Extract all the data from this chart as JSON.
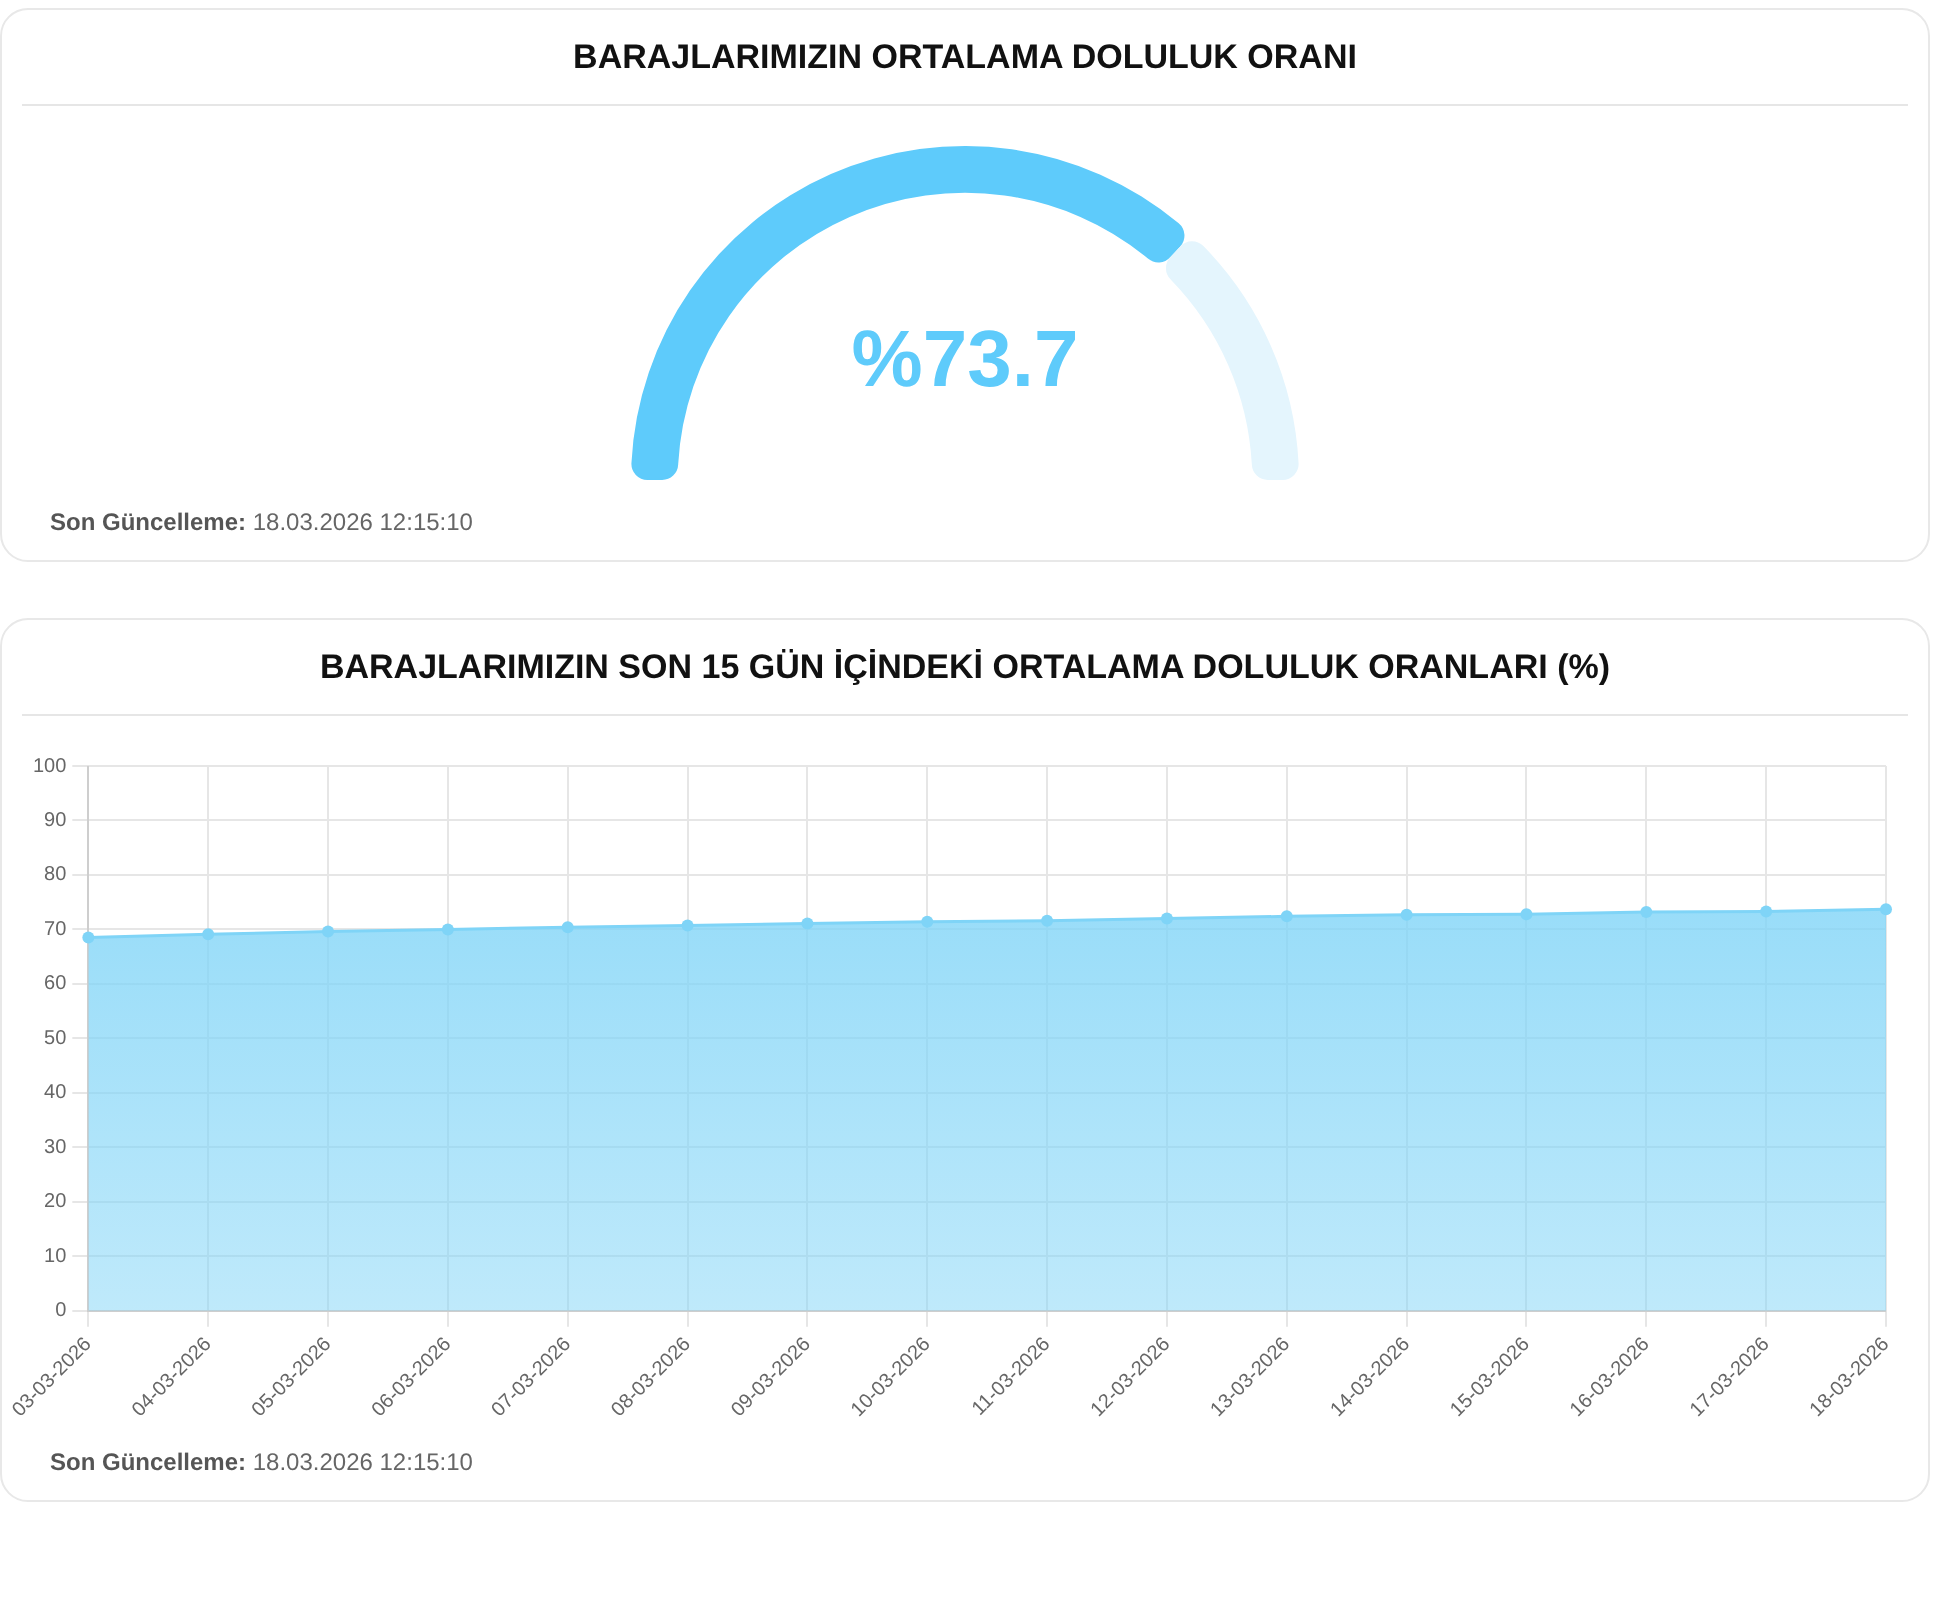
{
  "chart_data": [
    {
      "type": "donut",
      "title": "BARAJLARIMIZIN ORTALAMA DOLULUK ORANI",
      "categories": [
        null,
        null
      ],
      "values": [
        73.7,
        26.3
      ],
      "colors": [
        "#5ecbfb",
        "#e4f5fd"
      ],
      "value_labels": [
        "%73.7",
        null
      ],
      "annotations": [
        "Son Güncelleme: 18.03.2026 12:15:10"
      ]
    },
    {
      "type": "area",
      "title": "BARAJLARIMIZIN SON 15 GÜN İÇİNDEKİ ORTALAMA DOLULUK ORANLARI (%)",
      "categories": [
        "03-03-2026",
        "04-03-2026",
        "05-03-2026",
        "06-03-2026",
        "07-03-2026",
        "08-03-2026",
        "09-03-2026",
        "10-03-2026",
        "11-03-2026",
        "12-03-2026",
        "13-03-2026",
        "14-03-2026",
        "15-03-2026",
        "16-03-2026",
        "17-03-2026",
        "18-03-2026"
      ],
      "series": [
        {
          "color": "#7fd4f7",
          "values": [
            68.5,
            69.1,
            69.6,
            70.0,
            70.4,
            70.7,
            71.1,
            71.4,
            71.6,
            72.0,
            72.4,
            72.7,
            72.8,
            73.2,
            73.3,
            73.7
          ]
        }
      ],
      "ylim": [
        0,
        100
      ],
      "yticks": [
        0,
        10,
        20,
        30,
        40,
        50,
        60,
        70,
        80,
        90,
        100
      ],
      "grid": true,
      "marker": "circle",
      "legend": false,
      "annotations": [
        "Son Güncelleme: 18.03.2026 12:15:10"
      ]
    }
  ]
}
